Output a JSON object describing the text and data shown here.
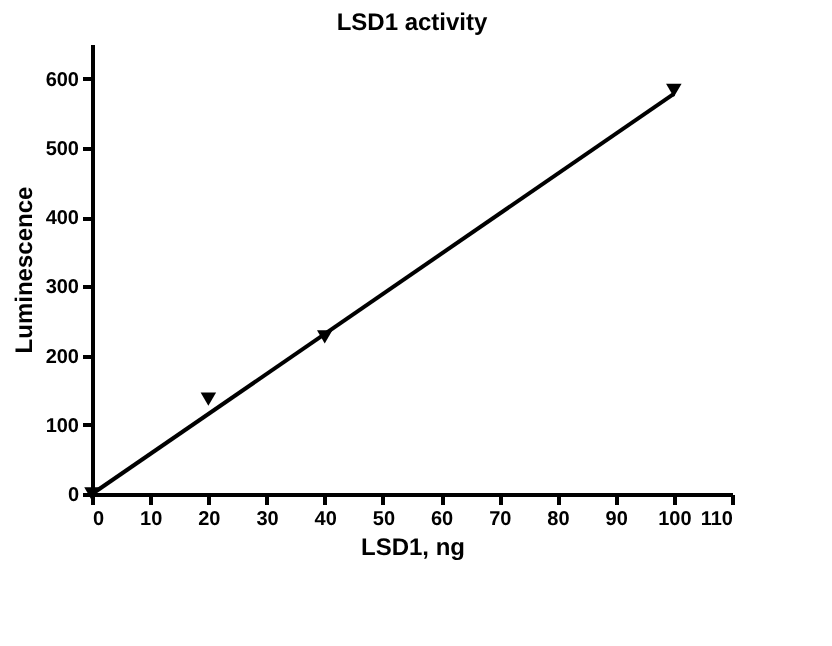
{
  "chart_data": {
    "type": "scatter",
    "title": "LSD1 activity",
    "xlabel": "LSD1, ng",
    "ylabel": "Luminescence",
    "x": [
      0,
      20,
      40,
      100
    ],
    "series": [
      {
        "color": "#000000",
        "marker": "triangle",
        "values": [
          0,
          137,
          227,
          583
        ]
      },
      {
        "type": "line",
        "color": "#000000",
        "marker": "none",
        "line_style": "solid",
        "x": [
          0,
          100
        ],
        "values": [
          0,
          578
        ]
      }
    ],
    "xlim": [
      0,
      110
    ],
    "xticks": [
      0,
      10,
      20,
      30,
      40,
      50,
      60,
      70,
      80,
      90,
      100,
      110
    ],
    "ylim": [
      0,
      650
    ],
    "yticks": [
      0,
      100,
      200,
      300,
      400,
      500,
      600
    ],
    "grid": false
  }
}
